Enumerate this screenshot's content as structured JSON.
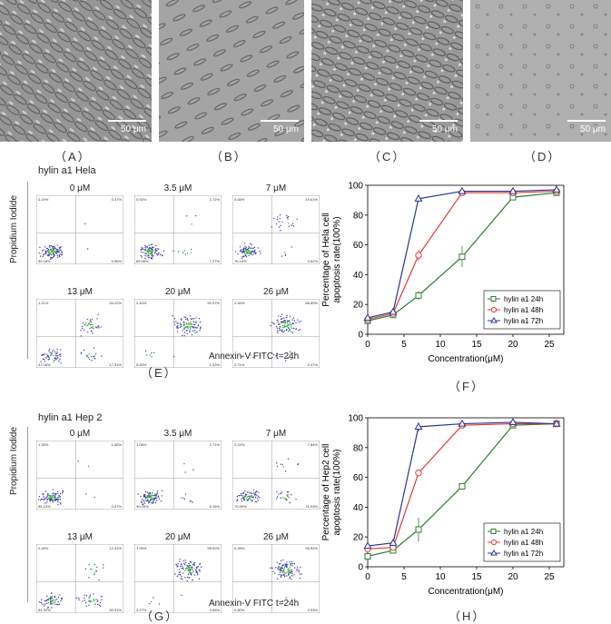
{
  "panel_labels": {
    "A": "（A）",
    "B": "（B）",
    "C": "（C）",
    "D": "（D）",
    "E": "（E）",
    "F": "（F）",
    "G": "（G）",
    "H": "（H）"
  },
  "micrographs": [
    {
      "id": "A",
      "scale": "50 μm",
      "tone": "#9a9a9a"
    },
    {
      "id": "B",
      "scale": "50 μm",
      "tone": "#a6a6a6"
    },
    {
      "id": "C",
      "scale": "50 μm",
      "tone": "#9c9c9c"
    },
    {
      "id": "D",
      "scale": "50 μm",
      "tone": "#b2b2b2"
    }
  ],
  "flow_E": {
    "title": "hylin a1 Hela",
    "ylabel": "Propidium Iodide",
    "xlabel": "Annexin-V FITC t=24h",
    "plots": [
      {
        "conc": "0 μM",
        "ul": "0.19%",
        "ur": "0.47%",
        "ll": "99.18%",
        "lr": "0.56%"
      },
      {
        "conc": "3.5 μM",
        "ul": "0.92%",
        "ur": "2.72%",
        "ll": "89.05%",
        "lr": "7.27%"
      },
      {
        "conc": "7 μM",
        "ul": "0.08%",
        "ur": "19.61%",
        "ll": "76.18%",
        "lr": "4.52%"
      },
      {
        "conc": "13 μM",
        "ul": "1.21%",
        "ur": "34.22%",
        "ll": "47.06%",
        "lr": "17.51%"
      },
      {
        "conc": "20 μM",
        "ul": "2.40%",
        "ur": "90.97%",
        "ll": "5.60%",
        "lr": "1.03%"
      },
      {
        "conc": "26 μM",
        "ul": "2.94%",
        "ur": "88.89%",
        "ll": "2.71%",
        "lr": "5.47%"
      }
    ]
  },
  "flow_G": {
    "title": "hylin a1 Hep 2",
    "ylabel": "Propidium Iodide",
    "xlabel": "Annexin-V FITC t=24h",
    "plots": [
      {
        "conc": "0 μM",
        "ul": "1.05%",
        "ur": "1.66%",
        "ll": "95.10%",
        "lr": "2.07%"
      },
      {
        "conc": "3.5 μM",
        "ul": "1.08%",
        "ur": "2.71%",
        "ll": "90.05%",
        "lr": "6.16%"
      },
      {
        "conc": "7 μM",
        "ul": "0.24%",
        "ur": "7.84%",
        "ll": "70.99%",
        "lr": "21.03%"
      },
      {
        "conc": "13 μM",
        "ul": "2.45%",
        "ur": "12.41%",
        "ll": "54.32%",
        "lr": "30.91%"
      },
      {
        "conc": "20 μM",
        "ul": "1.09%",
        "ur": "95.00%",
        "ll": "3.27%",
        "lr": "0.65%"
      },
      {
        "conc": "26 μM",
        "ul": "0.35%",
        "ur": "95.92%",
        "ll": "0.80%",
        "lr": "2.93%"
      }
    ]
  },
  "chart_data": [
    {
      "type": "line",
      "panel": "F",
      "xlabel": "Concentration(μM)",
      "ylabel_lines": [
        "Percentage of Hela cell",
        "apoptosis rate(100%)"
      ],
      "xlim": [
        0,
        27
      ],
      "ylim": [
        0,
        100
      ],
      "xticks": [
        0,
        5,
        10,
        15,
        20,
        25
      ],
      "yticks": [
        0,
        20,
        40,
        60,
        80,
        100
      ],
      "x": [
        0,
        3.5,
        7,
        13,
        20,
        26
      ],
      "series": [
        {
          "name": "hylin a1 24h",
          "values": [
            9,
            13,
            26,
            52,
            92,
            95
          ],
          "err": [
            1,
            2,
            3,
            7,
            2,
            2
          ],
          "color": "#2e7d32",
          "marker": "square"
        },
        {
          "name": "hylin a1 48h",
          "values": [
            10,
            14,
            53,
            95,
            95,
            96
          ],
          "err": [
            1,
            2,
            4,
            2,
            2,
            2
          ],
          "color": "#e53935",
          "marker": "circle"
        },
        {
          "name": "hylin a1 72h",
          "values": [
            11,
            15,
            91,
            96,
            96,
            97
          ],
          "err": [
            1,
            2,
            1,
            2,
            1,
            1
          ],
          "color": "#283593",
          "marker": "triangle"
        }
      ],
      "legend": "bottom-right"
    },
    {
      "type": "line",
      "panel": "H",
      "xlabel": "Concentration(μM)",
      "ylabel_lines": [
        "Percentage of Hep2 cell",
        "apoptosis rate(100%)"
      ],
      "xlim": [
        0,
        27
      ],
      "ylim": [
        0,
        100
      ],
      "xticks": [
        0,
        5,
        10,
        15,
        20,
        25
      ],
      "yticks": [
        0,
        20,
        40,
        60,
        80,
        100
      ],
      "x": [
        0,
        3.5,
        7,
        13,
        20,
        26
      ],
      "series": [
        {
          "name": "hylin a1 24h",
          "values": [
            7,
            11,
            25,
            54,
            95,
            96
          ],
          "err": [
            1,
            2,
            8,
            1,
            1,
            1
          ],
          "color": "#2e7d32",
          "marker": "square"
        },
        {
          "name": "hylin a1 48h",
          "values": [
            12,
            13,
            63,
            95,
            96,
            96
          ],
          "err": [
            1,
            2,
            1,
            1,
            1,
            1
          ],
          "color": "#e53935",
          "marker": "circle"
        },
        {
          "name": "hylin a1 72h",
          "values": [
            14,
            16,
            94,
            96,
            97,
            96
          ],
          "err": [
            1,
            2,
            3,
            1,
            1,
            1
          ],
          "color": "#283593",
          "marker": "triangle"
        }
      ],
      "legend": "bottom-right"
    }
  ]
}
